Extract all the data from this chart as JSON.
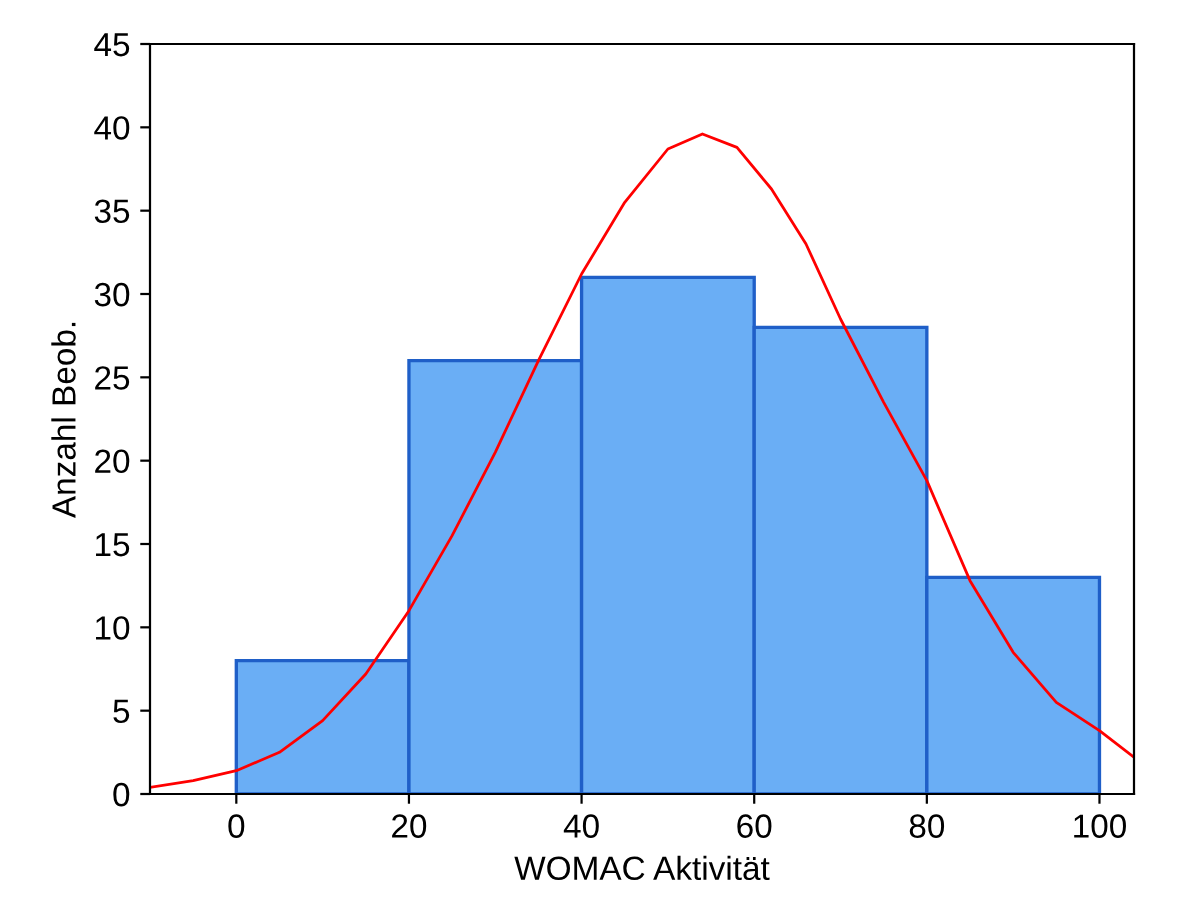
{
  "chart_data": {
    "type": "histogram",
    "xlabel": "WOMAC Aktivität",
    "ylabel": "Anzahl Beob.",
    "bins": [
      0,
      20,
      40,
      60,
      80,
      100
    ],
    "values": [
      8,
      26,
      31,
      28,
      13
    ],
    "color": "#6aaef5",
    "series": [
      {
        "type": "line",
        "color": "#ff0000",
        "x": [
          -10,
          -5,
          0,
          5,
          10,
          15,
          20,
          25,
          30,
          35,
          40,
          45,
          50,
          54,
          58,
          62,
          66,
          70,
          75,
          80,
          85,
          90,
          95,
          100,
          104
        ],
        "values": [
          0.4,
          0.8,
          1.4,
          2.5,
          4.4,
          7.2,
          11,
          15.5,
          20.5,
          26,
          31.2,
          35.5,
          38.7,
          39.6,
          38.8,
          36.3,
          33,
          28.5,
          23.5,
          18.8,
          12.8,
          8.5,
          5.5,
          3.8,
          2.2
        ]
      }
    ],
    "xlim": [
      -10,
      104
    ],
    "ylim": [
      0,
      45
    ],
    "xticks": [
      0,
      20,
      40,
      60,
      80,
      100
    ],
    "yticks": [
      0,
      5,
      10,
      15,
      20,
      25,
      30,
      35,
      40,
      45
    ],
    "grid": false,
    "legend": false
  }
}
